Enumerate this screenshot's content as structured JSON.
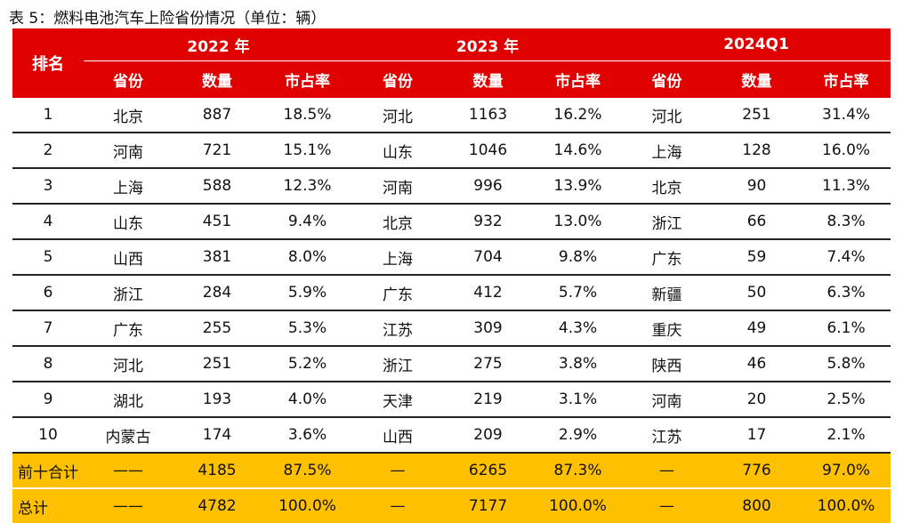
{
  "caption": "表 5：燃料电池汽车上险省份情况（单位：辆）",
  "header": {
    "rank": "排名",
    "years": [
      "2022 年",
      "2023 年",
      "2024Q1"
    ],
    "sub": [
      "省份",
      "数量",
      "市占率"
    ]
  },
  "rows": [
    {
      "rank": "1",
      "c": [
        [
          "北京",
          "887",
          "18.5%"
        ],
        [
          "河北",
          "1163",
          "16.2%"
        ],
        [
          "河北",
          "251",
          "31.4%"
        ]
      ]
    },
    {
      "rank": "2",
      "c": [
        [
          "河南",
          "721",
          "15.1%"
        ],
        [
          "山东",
          "1046",
          "14.6%"
        ],
        [
          "上海",
          "128",
          "16.0%"
        ]
      ]
    },
    {
      "rank": "3",
      "c": [
        [
          "上海",
          "588",
          "12.3%"
        ],
        [
          "河南",
          "996",
          "13.9%"
        ],
        [
          "北京",
          "90",
          "11.3%"
        ]
      ]
    },
    {
      "rank": "4",
      "c": [
        [
          "山东",
          "451",
          "9.4%"
        ],
        [
          "北京",
          "932",
          "13.0%"
        ],
        [
          "浙江",
          "66",
          "8.3%"
        ]
      ]
    },
    {
      "rank": "5",
      "c": [
        [
          "山西",
          "381",
          "8.0%"
        ],
        [
          "上海",
          "704",
          "9.8%"
        ],
        [
          "广东",
          "59",
          "7.4%"
        ]
      ]
    },
    {
      "rank": "6",
      "c": [
        [
          "浙江",
          "284",
          "5.9%"
        ],
        [
          "广东",
          "412",
          "5.7%"
        ],
        [
          "新疆",
          "50",
          "6.3%"
        ]
      ]
    },
    {
      "rank": "7",
      "c": [
        [
          "广东",
          "255",
          "5.3%"
        ],
        [
          "江苏",
          "309",
          "4.3%"
        ],
        [
          "重庆",
          "49",
          "6.1%"
        ]
      ]
    },
    {
      "rank": "8",
      "c": [
        [
          "河北",
          "251",
          "5.2%"
        ],
        [
          "浙江",
          "275",
          "3.8%"
        ],
        [
          "陕西",
          "46",
          "5.8%"
        ]
      ]
    },
    {
      "rank": "9",
      "c": [
        [
          "湖北",
          "193",
          "4.0%"
        ],
        [
          "天津",
          "219",
          "3.1%"
        ],
        [
          "河南",
          "20",
          "2.5%"
        ]
      ]
    },
    {
      "rank": "10",
      "c": [
        [
          "内蒙古",
          "174",
          "3.6%"
        ],
        [
          "山西",
          "209",
          "2.9%"
        ],
        [
          "江苏",
          "17",
          "2.1%"
        ]
      ]
    }
  ],
  "totals": [
    {
      "label": "前十合计",
      "c": [
        [
          "——",
          "4185",
          "87.5%"
        ],
        [
          "—",
          "6265",
          "87.3%"
        ],
        [
          "—",
          "776",
          "97.0%"
        ]
      ]
    },
    {
      "label": "总计",
      "c": [
        [
          "——",
          "4782",
          "100.0%"
        ],
        [
          "—",
          "7177",
          "100.0%"
        ],
        [
          "—",
          "800",
          "100.0%"
        ]
      ]
    }
  ],
  "colors": {
    "header_bg": "#e00000",
    "total_bg": "#ffc000"
  }
}
